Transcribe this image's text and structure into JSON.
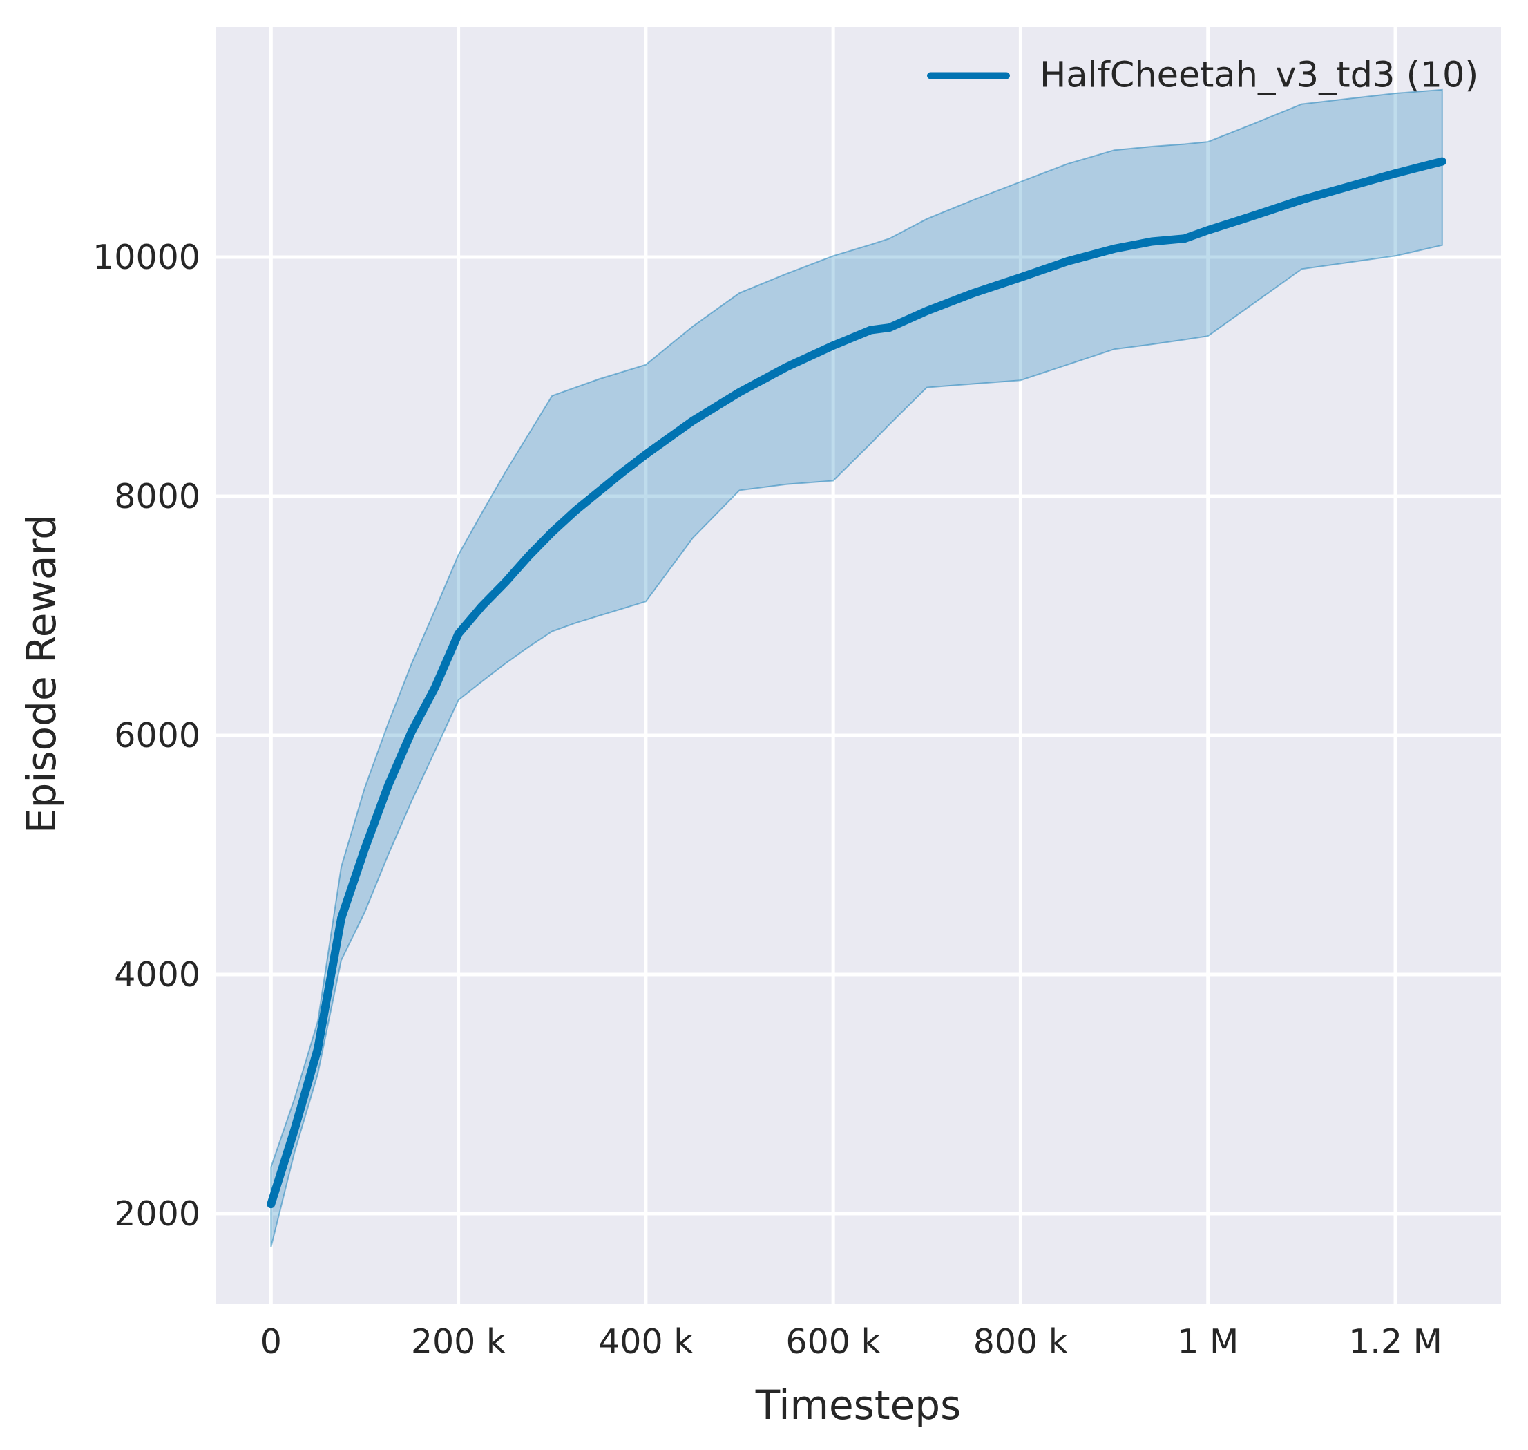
{
  "chart_data": {
    "type": "line",
    "title": "",
    "xlabel": "Timesteps",
    "ylabel": "Episode Reward",
    "grid": true,
    "legend_position": "upper-right",
    "legend": [
      {
        "label": "HalfCheetah_v3_td3 (10)",
        "color": "#0173b2"
      }
    ],
    "colors": {
      "axes_background": "#eaeaf2",
      "grid": "#ffffff",
      "text": "#262626",
      "line": "#0173b2"
    },
    "xlim": [
      -59200,
      1312800
    ],
    "ylim": [
      1243,
      11925
    ],
    "xticks": [
      {
        "value": 0,
        "label": "0"
      },
      {
        "value": 200000,
        "label": "200 k"
      },
      {
        "value": 400000,
        "label": "400 k"
      },
      {
        "value": 600000,
        "label": "600 k"
      },
      {
        "value": 800000,
        "label": "800 k"
      },
      {
        "value": 1000000,
        "label": "1 M"
      },
      {
        "value": 1200000,
        "label": "1.2 M"
      }
    ],
    "yticks": [
      {
        "value": 2000,
        "label": "2000"
      },
      {
        "value": 4000,
        "label": "4000"
      },
      {
        "value": 6000,
        "label": "6000"
      },
      {
        "value": 8000,
        "label": "8000"
      },
      {
        "value": 10000,
        "label": "10000"
      }
    ],
    "series": [
      {
        "name": "HalfCheetah_v3_td3 (10)",
        "color": "#0173b2",
        "line_width": 12,
        "band_opacity": 0.25,
        "x": [
          0,
          25000,
          50000,
          75000,
          100000,
          125000,
          150000,
          175000,
          200000,
          225000,
          250000,
          275000,
          300000,
          325000,
          350000,
          375000,
          400000,
          450000,
          500000,
          550000,
          600000,
          640000,
          660000,
          700000,
          750000,
          800000,
          850000,
          900000,
          940000,
          975000,
          1000000,
          1050000,
          1100000,
          1150000,
          1200000,
          1250000
        ],
        "y": [
          2080,
          2700,
          3380,
          4470,
          5050,
          5580,
          6030,
          6400,
          6850,
          7080,
          7280,
          7500,
          7700,
          7880,
          8040,
          8200,
          8350,
          8630,
          8870,
          9080,
          9260,
          9390,
          9410,
          9550,
          9700,
          9830,
          9965,
          10070,
          10130,
          10155,
          10225,
          10350,
          10480,
          10590,
          10700,
          10800
        ],
        "band_lower": [
          1720,
          2510,
          3170,
          4120,
          4520,
          5000,
          5450,
          5870,
          6295,
          6450,
          6600,
          6740,
          6870,
          6940,
          7000,
          7060,
          7120,
          7650,
          8050,
          8100,
          8130,
          8440,
          8600,
          8910,
          8940,
          8970,
          9100,
          9230,
          9270,
          9310,
          9340,
          9620,
          9900,
          9955,
          10010,
          10100
        ],
        "band_upper": [
          2390,
          2960,
          3610,
          4900,
          5560,
          6100,
          6600,
          7050,
          7510,
          7860,
          8200,
          8520,
          8840,
          8910,
          8980,
          9040,
          9100,
          9420,
          9700,
          9860,
          10010,
          10105,
          10155,
          10320,
          10480,
          10630,
          10780,
          10895,
          10925,
          10945,
          10965,
          11120,
          11280,
          11325,
          11370,
          11400
        ]
      }
    ]
  }
}
